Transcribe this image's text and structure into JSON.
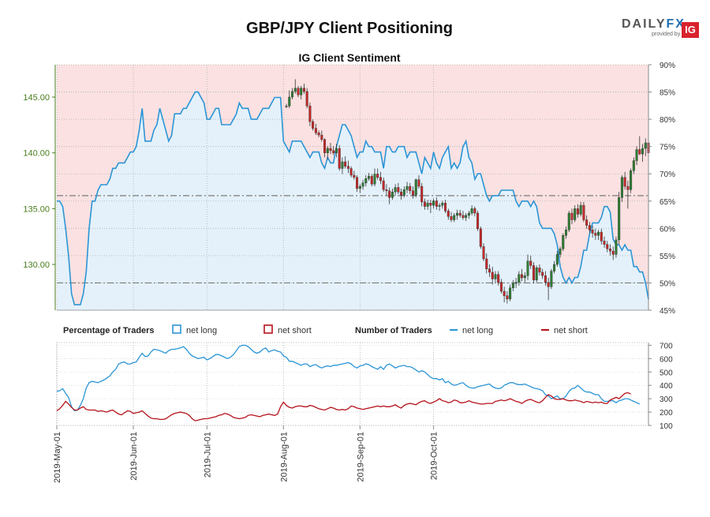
{
  "title": "GBP/JPY Client Positioning",
  "subtitle": "IG Client Sentiment",
  "logo": {
    "brand_a": "DAILY",
    "brand_b": "FX",
    "provided_by": "provided by",
    "ig": "IG"
  },
  "colors": {
    "long": "#2b95d6",
    "short": "#b5121b",
    "long_fill": "#e4f1fb",
    "short_fill": "#fbe1e1",
    "price_axis": "#4a7d1e",
    "up": "#2e7d32",
    "down": "#c62828"
  },
  "legend": {
    "pct_title": "Percentage of Traders",
    "pct_long": "net long",
    "pct_short": "net short",
    "num_title": "Number of Traders",
    "num_long": "net long",
    "num_short": "net short"
  },
  "chart_data": {
    "type": "line",
    "price_axis": {
      "ticks": [
        130.0,
        135.0,
        140.0,
        145.0
      ],
      "labels": [
        "130.00",
        "135.00",
        "140.00",
        "145.00"
      ],
      "range": [
        125.9,
        147.9
      ]
    },
    "pct_axis": {
      "ticks": [
        45,
        50,
        55,
        60,
        65,
        70,
        75,
        80,
        85,
        90
      ],
      "labels": [
        "45%",
        "50%",
        "55%",
        "60%",
        "65%",
        "70%",
        "75%",
        "80%",
        "85%",
        "90%"
      ],
      "range": [
        45,
        90
      ]
    },
    "count_axis": {
      "ticks": [
        100,
        200,
        300,
        400,
        500,
        600,
        700
      ],
      "labels": [
        "100",
        "200",
        "300",
        "400",
        "500",
        "600",
        "700"
      ],
      "range": [
        100,
        720
      ]
    },
    "x_labels": [
      "2019-May-01",
      "2019-Jun-01",
      "2019-Jul-01",
      "2019-Aug-01",
      "2019-Sep-01",
      "2019-Oct-01"
    ],
    "reference_lines_pct": [
      50,
      66
    ],
    "pct_long": [
      65,
      65,
      64,
      60,
      55,
      48,
      46,
      46,
      46,
      48,
      52,
      60,
      65,
      65,
      67,
      68,
      68,
      68,
      69,
      71,
      71,
      72,
      72,
      72,
      73,
      74,
      74,
      75,
      78,
      82,
      76,
      76,
      76,
      78,
      79,
      82,
      80,
      78,
      76,
      77,
      81,
      81,
      81,
      82,
      82,
      83,
      84,
      85,
      85,
      84,
      83,
      80,
      80,
      81,
      82,
      82,
      79,
      79,
      79,
      79,
      80,
      81,
      83,
      82,
      82,
      82,
      80,
      80,
      80,
      81,
      82,
      82,
      82,
      83,
      84,
      84,
      84,
      76,
      75,
      74,
      76,
      76,
      76,
      76,
      75,
      74,
      73,
      74,
      74,
      74,
      72,
      71,
      73,
      72,
      72,
      75,
      77,
      79,
      79,
      78,
      77,
      75,
      73,
      74,
      74,
      76,
      75,
      75,
      74,
      74,
      74,
      71,
      75,
      75,
      74,
      74,
      75,
      75,
      75,
      73,
      74,
      74,
      74,
      72,
      70,
      73,
      72,
      71,
      74,
      72,
      71,
      73,
      74,
      75,
      71,
      72,
      71,
      72,
      75,
      76,
      73,
      72,
      69,
      70,
      70,
      68,
      66,
      65,
      66,
      66,
      66,
      67,
      67,
      67,
      67,
      67,
      65,
      64,
      65,
      65,
      65,
      64,
      65,
      64,
      61,
      60,
      60,
      60,
      60,
      59,
      57,
      53,
      51,
      50,
      51,
      50,
      51,
      51,
      53,
      56,
      56,
      59,
      61,
      61,
      61,
      62,
      64,
      64,
      63,
      58,
      57,
      57,
      56,
      57,
      56,
      56,
      53,
      53,
      52,
      52,
      50,
      47
    ],
    "pct_short": [
      35,
      35,
      36,
      40,
      45,
      52,
      54,
      54,
      54,
      52,
      48,
      40,
      35,
      35,
      33,
      32,
      32,
      32,
      31,
      29,
      29,
      28,
      28,
      28,
      27,
      26,
      26,
      25,
      22,
      18,
      24,
      24,
      24,
      22,
      21,
      18,
      20,
      22,
      24,
      23,
      19,
      19,
      19,
      18,
      18,
      17,
      16,
      15,
      15,
      16,
      17,
      20,
      20,
      19,
      18,
      18,
      21,
      21,
      21,
      21,
      20,
      19,
      17,
      18,
      18,
      18,
      20,
      20,
      20,
      19,
      18,
      18,
      18,
      17,
      16,
      16,
      16,
      24,
      25,
      26,
      24,
      24,
      24,
      24,
      25,
      26,
      27,
      26,
      26,
      26,
      28,
      29,
      27,
      28,
      28,
      25,
      23,
      21,
      21,
      22,
      23,
      25,
      27,
      26,
      26,
      24,
      25,
      25,
      26,
      26,
      26,
      29,
      25,
      25,
      26,
      26,
      25,
      25,
      25,
      27,
      26,
      26,
      26,
      28,
      30,
      27,
      28,
      29,
      26,
      28,
      29,
      27,
      26,
      25,
      29,
      28,
      29,
      28,
      25,
      24,
      27,
      28,
      31,
      30,
      30,
      32,
      34,
      35,
      34,
      34,
      34,
      33,
      33,
      33,
      33,
      33,
      35,
      36,
      35,
      35,
      35,
      36,
      35,
      36,
      39,
      40,
      40,
      40,
      40,
      41,
      43,
      47,
      49,
      50,
      49,
      50,
      49,
      49,
      47,
      44,
      44,
      41,
      39,
      39,
      39,
      38,
      36,
      36,
      37,
      42,
      43,
      43,
      44,
      43,
      44,
      44,
      47,
      47,
      48,
      48,
      50,
      53
    ],
    "count_long": [
      355,
      360,
      375,
      340,
      310,
      240,
      210,
      215,
      250,
      300,
      380,
      420,
      430,
      425,
      420,
      430,
      440,
      455,
      470,
      500,
      520,
      560,
      570,
      575,
      560,
      560,
      570,
      575,
      610,
      640,
      615,
      620,
      650,
      670,
      665,
      660,
      650,
      640,
      660,
      670,
      670,
      675,
      680,
      690,
      670,
      640,
      620,
      610,
      600,
      605,
      610,
      590,
      600,
      615,
      630,
      630,
      620,
      610,
      600,
      610,
      630,
      660,
      690,
      700,
      700,
      690,
      670,
      650,
      640,
      650,
      670,
      680,
      650,
      660,
      665,
      655,
      650,
      620,
      610,
      580,
      580,
      570,
      560,
      550,
      560,
      560,
      540,
      550,
      555,
      540,
      530,
      540,
      545,
      540,
      550,
      550,
      555,
      560,
      565,
      570,
      560,
      540,
      530,
      545,
      550,
      560,
      555,
      540,
      530,
      520,
      540,
      520,
      550,
      560,
      545,
      530,
      540,
      545,
      550,
      540,
      540,
      530,
      515,
      500,
      510,
      500,
      480,
      460,
      450,
      450,
      440,
      450,
      420,
      430,
      410,
      400,
      405,
      415,
      420,
      400,
      385,
      380,
      380,
      390,
      395,
      400,
      405,
      410,
      390,
      380,
      375,
      380,
      400,
      410,
      420,
      420,
      410,
      405,
      405,
      410,
      400,
      390,
      380,
      375,
      370,
      360,
      330,
      320,
      300,
      310,
      320,
      300,
      300,
      320,
      355,
      375,
      380,
      400,
      380,
      360,
      350,
      350,
      340,
      330,
      330,
      300,
      280,
      280,
      285,
      285,
      270,
      285,
      290,
      300,
      300,
      290,
      280,
      270,
      260
    ],
    "count_short": [
      210,
      225,
      250,
      280,
      260,
      235,
      215,
      215,
      230,
      240,
      220,
      215,
      215,
      215,
      205,
      210,
      205,
      200,
      210,
      215,
      200,
      185,
      180,
      195,
      210,
      205,
      190,
      195,
      200,
      210,
      190,
      170,
      155,
      150,
      150,
      145,
      145,
      150,
      165,
      180,
      190,
      195,
      200,
      195,
      190,
      175,
      150,
      135,
      140,
      145,
      150,
      150,
      155,
      160,
      165,
      175,
      180,
      190,
      185,
      175,
      160,
      155,
      150,
      155,
      160,
      175,
      180,
      175,
      170,
      165,
      175,
      180,
      185,
      180,
      175,
      185,
      240,
      275,
      250,
      235,
      230,
      240,
      245,
      245,
      240,
      240,
      250,
      245,
      235,
      225,
      220,
      215,
      225,
      235,
      230,
      220,
      215,
      220,
      215,
      225,
      245,
      240,
      230,
      225,
      220,
      225,
      230,
      235,
      240,
      245,
      240,
      245,
      240,
      240,
      245,
      255,
      240,
      230,
      250,
      260,
      265,
      260,
      255,
      270,
      280,
      285,
      270,
      265,
      275,
      285,
      300,
      285,
      280,
      270,
      275,
      290,
      285,
      270,
      270,
      275,
      285,
      275,
      270,
      265,
      260,
      260,
      265,
      265,
      265,
      280,
      285,
      290,
      285,
      290,
      300,
      290,
      280,
      275,
      265,
      280,
      290,
      295,
      285,
      275,
      270,
      285,
      310,
      330,
      320,
      300,
      295,
      295,
      300,
      290,
      285,
      285,
      290,
      285,
      280,
      270,
      280,
      275,
      270,
      275,
      270,
      275,
      265,
      265,
      290,
      300,
      310,
      300,
      320,
      340,
      345,
      335
    ],
    "ohlc": [
      [
        144.2,
        144.4,
        144.0,
        144.2
      ],
      [
        144.2,
        145.6,
        144.0,
        145.0
      ],
      [
        145.0,
        145.8,
        144.8,
        145.5
      ],
      [
        145.5,
        146.6,
        145.3,
        145.8
      ],
      [
        145.8,
        146.0,
        145.0,
        145.2
      ],
      [
        145.2,
        146.0,
        144.8,
        145.8
      ],
      [
        145.8,
        146.2,
        145.3,
        145.5
      ],
      [
        145.5,
        145.8,
        144.0,
        144.2
      ],
      [
        144.2,
        144.5,
        142.4,
        142.8
      ],
      [
        142.8,
        143.0,
        142.0,
        142.2
      ],
      [
        142.2,
        142.6,
        141.6,
        141.8
      ],
      [
        141.8,
        142.0,
        141.4,
        141.6
      ],
      [
        141.6,
        142.0,
        141.0,
        141.2
      ],
      [
        141.2,
        141.3,
        139.6,
        140.0
      ],
      [
        140.0,
        140.6,
        139.4,
        140.4
      ],
      [
        140.4,
        140.9,
        139.9,
        140.2
      ],
      [
        140.2,
        140.6,
        139.8,
        140.0
      ],
      [
        140.0,
        140.8,
        139.6,
        140.4
      ],
      [
        140.4,
        140.7,
        138.4,
        138.6
      ],
      [
        138.6,
        139.6,
        138.1,
        139.2
      ],
      [
        139.2,
        139.7,
        138.6,
        138.8
      ],
      [
        138.8,
        139.3,
        138.2,
        138.6
      ],
      [
        138.6,
        138.8,
        137.8,
        138.0
      ],
      [
        138.0,
        138.4,
        137.6,
        137.8
      ],
      [
        137.8,
        138.0,
        136.5,
        136.8
      ],
      [
        136.8,
        137.2,
        136.4,
        137.0
      ],
      [
        137.0,
        137.6,
        136.7,
        137.3
      ],
      [
        137.3,
        138.0,
        137.0,
        137.7
      ],
      [
        137.7,
        138.2,
        137.5,
        137.9
      ],
      [
        137.9,
        138.1,
        137.0,
        137.2
      ],
      [
        137.2,
        138.6,
        137.0,
        138.1
      ],
      [
        138.1,
        138.6,
        137.6,
        137.8
      ],
      [
        137.8,
        138.3,
        137.2,
        137.5
      ],
      [
        137.5,
        137.8,
        136.5,
        136.7
      ],
      [
        136.7,
        137.2,
        136.2,
        136.6
      ],
      [
        136.6,
        136.9,
        135.4,
        136.0
      ],
      [
        136.0,
        136.8,
        135.8,
        136.5
      ],
      [
        136.5,
        137.2,
        136.2,
        136.9
      ],
      [
        136.9,
        137.3,
        136.3,
        136.5
      ],
      [
        136.5,
        136.8,
        135.8,
        136.2
      ],
      [
        136.2,
        137.0,
        136.0,
        136.7
      ],
      [
        136.7,
        137.4,
        136.4,
        137.0
      ],
      [
        137.0,
        137.3,
        136.3,
        136.6
      ],
      [
        136.6,
        137.0,
        135.9,
        136.2
      ],
      [
        136.2,
        137.7,
        136.0,
        137.6
      ],
      [
        137.6,
        138.0,
        136.8,
        137.0
      ],
      [
        137.0,
        137.3,
        135.2,
        135.6
      ],
      [
        135.6,
        135.9,
        134.9,
        135.2
      ],
      [
        135.2,
        135.8,
        134.9,
        135.5
      ],
      [
        135.5,
        135.8,
        134.6,
        135.3
      ],
      [
        135.3,
        135.9,
        135.0,
        135.7
      ],
      [
        135.7,
        136.0,
        134.9,
        135.2
      ],
      [
        135.2,
        135.5,
        134.8,
        135.3
      ],
      [
        135.3,
        135.7,
        135.0,
        135.5
      ],
      [
        135.5,
        135.8,
        134.6,
        134.8
      ],
      [
        134.8,
        135.0,
        134.0,
        134.3
      ],
      [
        134.3,
        134.7,
        133.8,
        134.0
      ],
      [
        134.0,
        134.6,
        133.8,
        134.4
      ],
      [
        134.4,
        134.9,
        134.0,
        134.6
      ],
      [
        134.6,
        134.9,
        134.2,
        134.4
      ],
      [
        134.4,
        134.8,
        134.0,
        134.2
      ],
      [
        134.2,
        134.6,
        133.9,
        134.4
      ],
      [
        134.4,
        134.8,
        134.1,
        134.6
      ],
      [
        134.6,
        135.3,
        134.4,
        135.0
      ],
      [
        135.0,
        135.2,
        134.3,
        134.6
      ],
      [
        134.6,
        134.8,
        133.0,
        133.2
      ],
      [
        133.2,
        133.4,
        131.4,
        131.6
      ],
      [
        131.6,
        131.9,
        130.3,
        130.5
      ],
      [
        130.5,
        131.0,
        129.2,
        129.6
      ],
      [
        129.6,
        130.0,
        128.9,
        129.3
      ],
      [
        129.3,
        129.8,
        128.2,
        128.7
      ],
      [
        128.7,
        129.4,
        128.4,
        129.1
      ],
      [
        129.1,
        129.4,
        128.1,
        128.4
      ],
      [
        128.4,
        128.7,
        127.4,
        127.6
      ],
      [
        127.6,
        128.0,
        126.6,
        127.2
      ],
      [
        127.2,
        127.6,
        126.5,
        126.9
      ],
      [
        126.9,
        128.2,
        126.7,
        127.9
      ],
      [
        127.9,
        128.6,
        127.6,
        128.3
      ],
      [
        128.3,
        128.8,
        127.9,
        128.4
      ],
      [
        128.4,
        129.4,
        128.1,
        129.1
      ],
      [
        129.1,
        129.6,
        128.5,
        128.8
      ],
      [
        128.8,
        129.3,
        128.4,
        129.0
      ],
      [
        129.0,
        130.9,
        128.6,
        130.3
      ],
      [
        130.3,
        130.8,
        129.6,
        129.9
      ],
      [
        129.9,
        130.2,
        128.3,
        128.6
      ],
      [
        128.6,
        129.9,
        128.4,
        129.7
      ],
      [
        129.7,
        130.0,
        129.0,
        129.3
      ],
      [
        129.3,
        129.6,
        128.7,
        129.0
      ],
      [
        129.0,
        129.4,
        128.1,
        128.4
      ],
      [
        128.4,
        128.8,
        126.8,
        128.0
      ],
      [
        128.0,
        129.6,
        127.8,
        129.4
      ],
      [
        129.4,
        130.3,
        129.2,
        130.0
      ],
      [
        130.0,
        131.2,
        129.8,
        130.9
      ],
      [
        130.9,
        131.6,
        130.6,
        131.4
      ],
      [
        131.4,
        132.8,
        131.2,
        132.6
      ],
      [
        132.6,
        133.4,
        132.3,
        133.1
      ],
      [
        133.1,
        134.8,
        132.9,
        134.6
      ],
      [
        134.6,
        135.0,
        133.6,
        134.0
      ],
      [
        134.0,
        135.3,
        133.8,
        135.0
      ],
      [
        135.0,
        135.4,
        134.2,
        134.5
      ],
      [
        134.5,
        135.6,
        134.3,
        135.3
      ],
      [
        135.3,
        135.6,
        133.8,
        134.0
      ],
      [
        134.0,
        134.4,
        133.2,
        133.5
      ],
      [
        133.5,
        133.8,
        132.8,
        133.1
      ],
      [
        133.1,
        133.5,
        132.4,
        132.8
      ],
      [
        132.8,
        133.2,
        132.2,
        132.6
      ],
      [
        132.6,
        133.1,
        132.2,
        132.9
      ],
      [
        132.9,
        133.2,
        131.8,
        132.1
      ],
      [
        132.1,
        132.5,
        131.5,
        131.8
      ],
      [
        131.8,
        132.1,
        131.1,
        131.4
      ],
      [
        131.4,
        131.8,
        130.8,
        131.2
      ],
      [
        131.2,
        131.6,
        130.4,
        130.9
      ],
      [
        130.9,
        132.5,
        130.6,
        132.2
      ],
      [
        132.2,
        136.5,
        131.8,
        136.0
      ],
      [
        136.0,
        138.0,
        135.6,
        137.8
      ],
      [
        137.8,
        138.3,
        136.7,
        137.0
      ],
      [
        137.0,
        137.5,
        135.0,
        136.7
      ],
      [
        136.7,
        138.6,
        136.4,
        138.4
      ],
      [
        138.4,
        139.6,
        138.1,
        139.3
      ],
      [
        139.3,
        140.6,
        138.9,
        140.3
      ],
      [
        140.3,
        141.5,
        139.8,
        139.9
      ],
      [
        139.9,
        140.8,
        139.2,
        140.4
      ],
      [
        140.4,
        141.3,
        139.7,
        140.9
      ],
      [
        140.9,
        141.2,
        139.6,
        140.0
      ]
    ]
  }
}
